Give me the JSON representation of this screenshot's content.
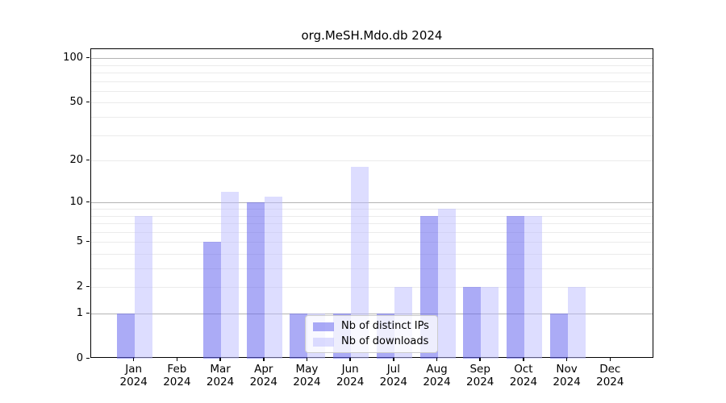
{
  "title": "org.MeSH.Mdo.db 2024",
  "chart_data": {
    "type": "bar",
    "title": "org.MeSH.Mdo.db 2024",
    "year_label": "2024",
    "categories": [
      "Jan",
      "Feb",
      "Mar",
      "Apr",
      "May",
      "Jun",
      "Jul",
      "Aug",
      "Sep",
      "Oct",
      "Nov",
      "Dec"
    ],
    "series": [
      {
        "name": "Nb of distinct IPs",
        "color": "#6666EE",
        "opacity": 0.55,
        "values": [
          1,
          0,
          5,
          10,
          1,
          1,
          1,
          8,
          2,
          8,
          1,
          0
        ]
      },
      {
        "name": "Nb of downloads",
        "color": "#BBBBFF",
        "opacity": 0.5,
        "values": [
          8,
          0,
          12,
          11,
          1,
          18,
          2,
          9,
          2,
          8,
          2,
          0
        ]
      }
    ],
    "yscale": "log1p",
    "ylim": [
      0,
      115
    ],
    "yticks": [
      0,
      1,
      2,
      5,
      10,
      20,
      50,
      100
    ],
    "major_gridlines": [
      1,
      10,
      100
    ],
    "minor_gridlines": [
      2,
      3,
      4,
      5,
      6,
      7,
      8,
      9,
      20,
      30,
      40,
      50,
      60,
      70,
      80,
      90
    ],
    "grid": "on",
    "legend_position": "inside-bottom-center",
    "axis_color": "#000000",
    "major_grid_color": "#b3b3b3",
    "minor_grid_color": "#ebebeb",
    "xlabel": "",
    "ylabel": ""
  }
}
